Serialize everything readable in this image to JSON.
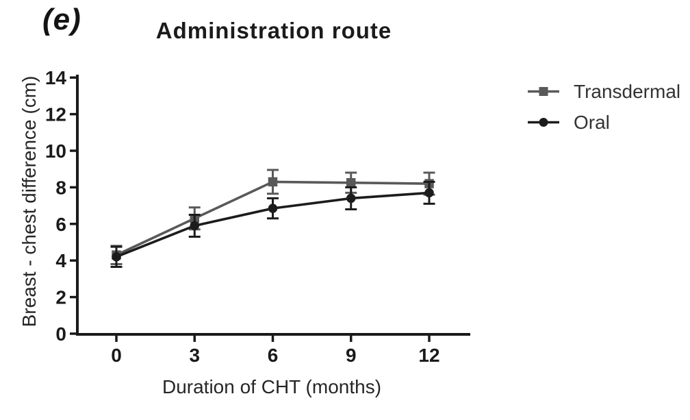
{
  "panel_label": "(e)",
  "legend": {
    "items": [
      {
        "label": "Transdermal",
        "marker": "square"
      },
      {
        "label": "Oral",
        "marker": "circle"
      }
    ]
  },
  "chart_data": {
    "type": "line",
    "title": "Administration route",
    "xlabel": "Duration of CHT (months)",
    "ylabel": "Breast - chest difference (cm)",
    "x": [
      0,
      3,
      6,
      9,
      12
    ],
    "xticks": [
      0,
      3,
      6,
      9,
      12
    ],
    "yticks": [
      0,
      2,
      4,
      6,
      8,
      10,
      12,
      14
    ],
    "ylim": [
      0,
      14
    ],
    "grid": false,
    "legend_position": "right",
    "axis_color": "#1a1a1a",
    "series": [
      {
        "name": "Transdermal",
        "marker": "square",
        "color": "#595959",
        "values": [
          4.3,
          6.3,
          8.3,
          8.25,
          8.2
        ],
        "error": [
          0.5,
          0.6,
          0.65,
          0.55,
          0.6
        ]
      },
      {
        "name": "Oral",
        "marker": "circle",
        "color": "#1c1c1c",
        "values": [
          4.2,
          5.9,
          6.85,
          7.4,
          7.7
        ],
        "error": [
          0.55,
          0.6,
          0.55,
          0.6,
          0.6
        ]
      }
    ]
  }
}
